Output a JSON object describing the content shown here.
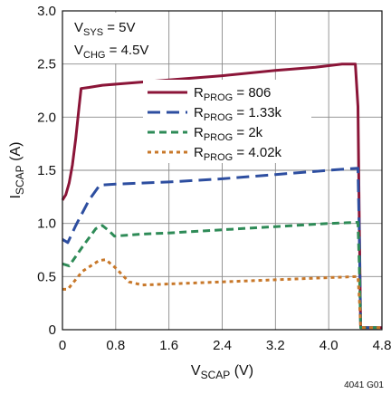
{
  "chart_data": {
    "type": "line",
    "xlabel": {
      "main": "V",
      "sub": "SCAP",
      "suffix": " (V)"
    },
    "ylabel": {
      "main": "I",
      "sub": "SCAP",
      "suffix": " (A)"
    },
    "xlim": [
      0,
      4.8
    ],
    "ylim": [
      0,
      3.0
    ],
    "x_ticks": [
      "0",
      "0.8",
      "1.6",
      "2.4",
      "3.2",
      "4.0",
      "4.8"
    ],
    "y_ticks": [
      "0",
      "0.5",
      "1.0",
      "1.5",
      "2.0",
      "2.5",
      "3.0"
    ],
    "grid": true,
    "legend_position": "upper-center",
    "annotations": [
      {
        "main": "V",
        "sub": "SYS",
        "suffix": " = 5V"
      },
      {
        "main": "V",
        "sub": "CHG",
        "suffix": " = 4.5V"
      }
    ],
    "figure_id": "4041 G01",
    "series": [
      {
        "legend": {
          "main": "R",
          "sub": "PROG",
          "suffix": " = 806"
        },
        "color": "#8b1538",
        "dash": "solid",
        "points": [
          [
            0,
            1.22
          ],
          [
            0.05,
            1.27
          ],
          [
            0.1,
            1.38
          ],
          [
            0.15,
            1.55
          ],
          [
            0.2,
            1.8
          ],
          [
            0.25,
            2.1
          ],
          [
            0.28,
            2.27
          ],
          [
            0.4,
            2.28
          ],
          [
            0.6,
            2.3
          ],
          [
            1.0,
            2.32
          ],
          [
            1.6,
            2.35
          ],
          [
            2.4,
            2.39
          ],
          [
            3.2,
            2.44
          ],
          [
            3.8,
            2.47
          ],
          [
            4.2,
            2.5
          ],
          [
            4.4,
            2.5
          ],
          [
            4.44,
            2.1
          ],
          [
            4.46,
            1.0
          ],
          [
            4.48,
            0.02
          ],
          [
            4.8,
            0.02
          ]
        ]
      },
      {
        "legend": {
          "main": "R",
          "sub": "PROG",
          "suffix": " = 1.33k"
        },
        "color": "#2d4ea0",
        "dash": "long",
        "points": [
          [
            0,
            0.85
          ],
          [
            0.08,
            0.82
          ],
          [
            0.2,
            0.98
          ],
          [
            0.4,
            1.22
          ],
          [
            0.56,
            1.36
          ],
          [
            0.8,
            1.37
          ],
          [
            1.6,
            1.39
          ],
          [
            2.4,
            1.42
          ],
          [
            3.2,
            1.46
          ],
          [
            4.0,
            1.5
          ],
          [
            4.44,
            1.52
          ],
          [
            4.46,
            0.9
          ],
          [
            4.48,
            0.02
          ],
          [
            4.8,
            0.02
          ]
        ]
      },
      {
        "legend": {
          "main": "R",
          "sub": "PROG",
          "suffix": " = 2k"
        },
        "color": "#2e8b57",
        "dash": "medium",
        "points": [
          [
            0,
            0.62
          ],
          [
            0.1,
            0.6
          ],
          [
            0.3,
            0.78
          ],
          [
            0.5,
            0.95
          ],
          [
            0.6,
            0.98
          ],
          [
            0.7,
            0.93
          ],
          [
            0.78,
            0.88
          ],
          [
            1.2,
            0.9
          ],
          [
            1.6,
            0.91
          ],
          [
            2.4,
            0.94
          ],
          [
            3.2,
            0.97
          ],
          [
            4.0,
            1.0
          ],
          [
            4.44,
            1.01
          ],
          [
            4.46,
            0.6
          ],
          [
            4.48,
            0.02
          ],
          [
            4.8,
            0.02
          ]
        ]
      },
      {
        "legend": {
          "main": "R",
          "sub": "PROG",
          "suffix": " = 4.02k"
        },
        "color": "#c8782a",
        "dash": "short",
        "points": [
          [
            0,
            0.38
          ],
          [
            0.08,
            0.38
          ],
          [
            0.3,
            0.55
          ],
          [
            0.55,
            0.65
          ],
          [
            0.65,
            0.66
          ],
          [
            0.8,
            0.58
          ],
          [
            1.0,
            0.45
          ],
          [
            1.2,
            0.42
          ],
          [
            1.6,
            0.43
          ],
          [
            2.4,
            0.45
          ],
          [
            3.2,
            0.47
          ],
          [
            4.0,
            0.49
          ],
          [
            4.44,
            0.5
          ],
          [
            4.46,
            0.3
          ],
          [
            4.48,
            0.02
          ],
          [
            4.8,
            0.02
          ]
        ]
      }
    ]
  }
}
